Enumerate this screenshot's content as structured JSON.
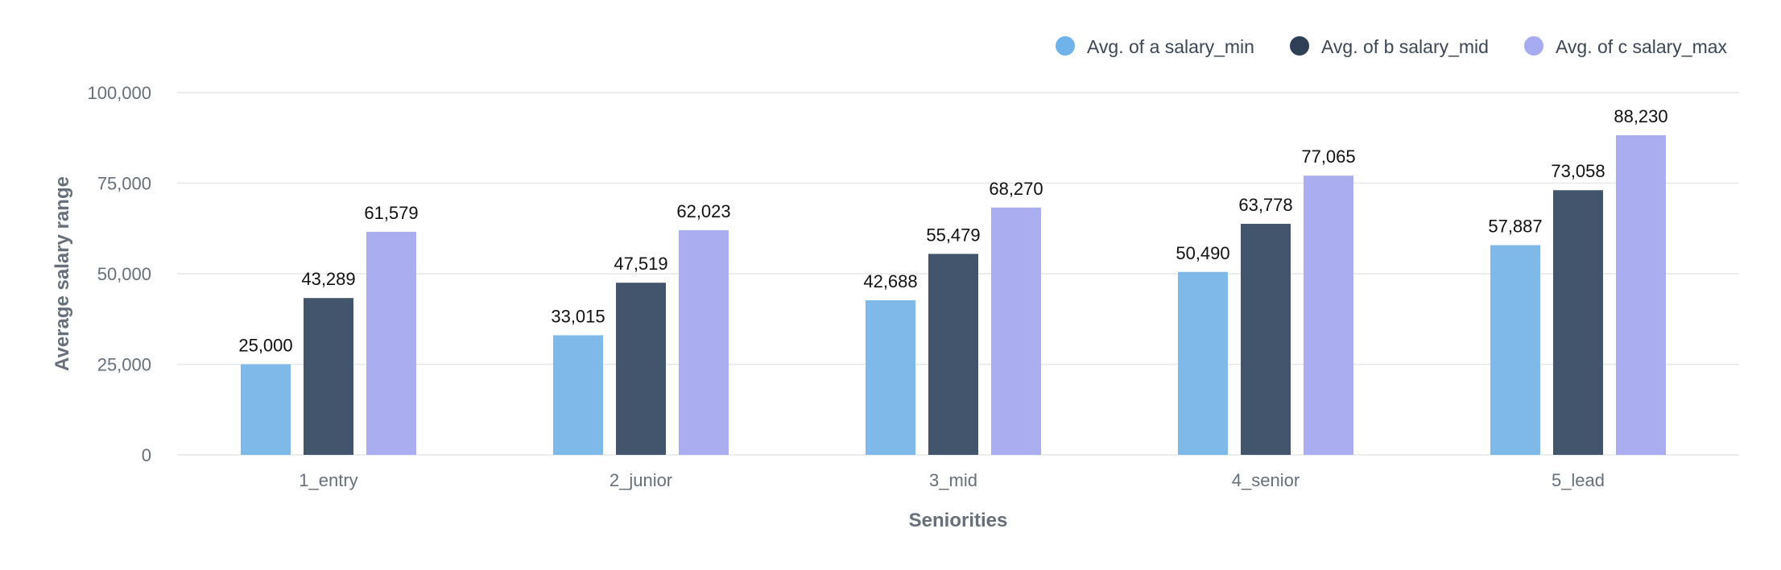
{
  "chart_data": {
    "type": "bar",
    "categories": [
      "1_entry",
      "2_junior",
      "3_mid",
      "4_senior",
      "5_lead"
    ],
    "series": [
      {
        "name": "Avg. of a salary_min",
        "color": "#7eb9ea",
        "values": [
          25000,
          33015,
          42688,
          50490,
          57887
        ],
        "labels": [
          "25,000",
          "33,015",
          "42,688",
          "50,490",
          "57,887"
        ]
      },
      {
        "name": "Avg. of b salary_mid",
        "color": "#43556c",
        "values": [
          43289,
          47519,
          55479,
          63778,
          73058
        ],
        "labels": [
          "43,289",
          "47,519",
          "55,479",
          "63,778",
          "73,058"
        ]
      },
      {
        "name": "Avg. of c salary_max",
        "color": "#aaaef0",
        "values": [
          61579,
          62023,
          68270,
          77065,
          88230
        ],
        "labels": [
          "61,579",
          "62,023",
          "68,270",
          "77,065",
          "88,230"
        ]
      }
    ],
    "title": "",
    "xlabel": "Seniorities",
    "ylabel": "Average salary range",
    "ylim": [
      0,
      100000
    ],
    "yticks": [
      0,
      25000,
      50000,
      75000,
      100000
    ],
    "ytick_labels": [
      "0",
      "25,000",
      "50,000",
      "75,000",
      "100,000"
    ],
    "grid": true,
    "legend_position": "top-right"
  },
  "legend_marker_colors": [
    "#70b3ea",
    "#2f3f56",
    "#a7acf0"
  ]
}
